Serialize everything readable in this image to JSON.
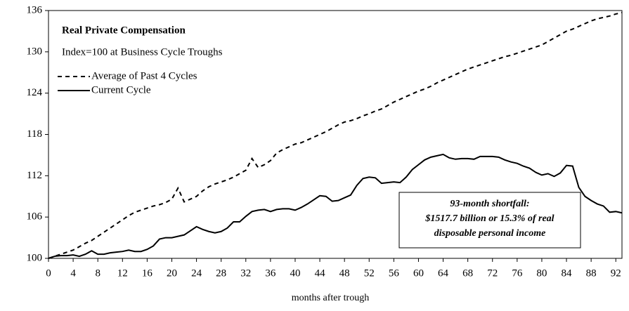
{
  "chart_data": {
    "type": "line",
    "title": "Real Private Compensation",
    "subtitle": "Index=100 at Business Cycle Troughs",
    "x_label": "months after trough",
    "annotation": [
      "93-month shortfall:",
      "$1517.7 billion or 15.3% of real",
      "disposable personal income"
    ],
    "x": [
      0,
      1,
      2,
      3,
      4,
      5,
      6,
      7,
      8,
      9,
      10,
      11,
      12,
      13,
      14,
      15,
      16,
      17,
      18,
      19,
      20,
      21,
      22,
      23,
      24,
      25,
      26,
      27,
      28,
      29,
      30,
      31,
      32,
      33,
      34,
      35,
      36,
      37,
      38,
      39,
      40,
      41,
      42,
      43,
      44,
      45,
      46,
      47,
      48,
      49,
      50,
      51,
      52,
      53,
      54,
      55,
      56,
      57,
      58,
      59,
      60,
      61,
      62,
      63,
      64,
      65,
      66,
      67,
      68,
      69,
      70,
      71,
      72,
      73,
      74,
      75,
      76,
      77,
      78,
      79,
      80,
      81,
      82,
      83,
      84,
      85,
      86,
      87,
      88,
      89,
      90,
      91,
      92,
      93
    ],
    "series": [
      {
        "name": "Average of Past 4 Cycles",
        "color": "#000000",
        "style": "dashed",
        "values": [
          100,
          100.3,
          100.6,
          100.9,
          101.2,
          101.7,
          102.2,
          102.6,
          103.2,
          103.8,
          104.4,
          105,
          105.6,
          106.2,
          106.7,
          107,
          107.3,
          107.6,
          107.8,
          108.1,
          108.6,
          110.2,
          108.2,
          108.6,
          109,
          109.8,
          110.4,
          110.8,
          111.1,
          111.4,
          111.8,
          112.3,
          112.8,
          114.5,
          113.2,
          113.6,
          114.2,
          115.3,
          115.8,
          116.2,
          116.6,
          116.8,
          117.2,
          117.6,
          118,
          118.4,
          118.9,
          119.4,
          119.8,
          120,
          120.3,
          120.7,
          121,
          121.4,
          121.7,
          122.2,
          122.7,
          123.1,
          123.5,
          123.9,
          124.3,
          124.6,
          125,
          125.5,
          125.9,
          126.3,
          126.7,
          127.1,
          127.5,
          127.8,
          128.1,
          128.4,
          128.7,
          129,
          129.3,
          129.5,
          129.8,
          130.1,
          130.4,
          130.7,
          131,
          131.5,
          132,
          132.5,
          133,
          133.3,
          133.7,
          134.1,
          134.5,
          134.8,
          135,
          135.2,
          135.5,
          135.7
        ]
      },
      {
        "name": "Current Cycle",
        "color": "#000000",
        "style": "solid",
        "values": [
          100,
          100.3,
          100.4,
          100.4,
          100.5,
          100.3,
          100.6,
          101.1,
          100.6,
          100.6,
          100.8,
          100.9,
          101,
          101.2,
          101,
          101,
          101.3,
          101.8,
          102.8,
          103,
          103,
          103.2,
          103.4,
          104,
          104.6,
          104.2,
          103.9,
          103.7,
          103.9,
          104.4,
          105.3,
          105.3,
          106.1,
          106.8,
          107,
          107.1,
          106.8,
          107.1,
          107.2,
          107.2,
          107,
          107.4,
          107.9,
          108.5,
          109.1,
          109,
          108.3,
          108.4,
          108.8,
          109.2,
          110.6,
          111.6,
          111.8,
          111.7,
          110.9,
          111,
          111.1,
          111,
          111.8,
          112.9,
          113.6,
          114.3,
          114.7,
          114.9,
          115.1,
          114.6,
          114.4,
          114.5,
          114.5,
          114.4,
          114.8,
          114.8,
          114.8,
          114.7,
          114.3,
          114,
          113.8,
          113.4,
          113.1,
          112.5,
          112.1,
          112.3,
          111.9,
          112.4,
          113.5,
          113.4,
          110.3,
          109,
          108.4,
          107.9,
          107.6,
          106.7,
          106.8,
          106.6
        ]
      }
    ],
    "xlim": [
      0,
      93
    ],
    "xticks": [
      0,
      4,
      8,
      12,
      16,
      20,
      24,
      28,
      32,
      36,
      40,
      44,
      48,
      52,
      56,
      60,
      64,
      68,
      72,
      76,
      80,
      84,
      88,
      92
    ],
    "ylim": [
      100,
      136
    ],
    "yticks": [
      100,
      106,
      112,
      118,
      124,
      130,
      136
    ],
    "grid": false
  }
}
